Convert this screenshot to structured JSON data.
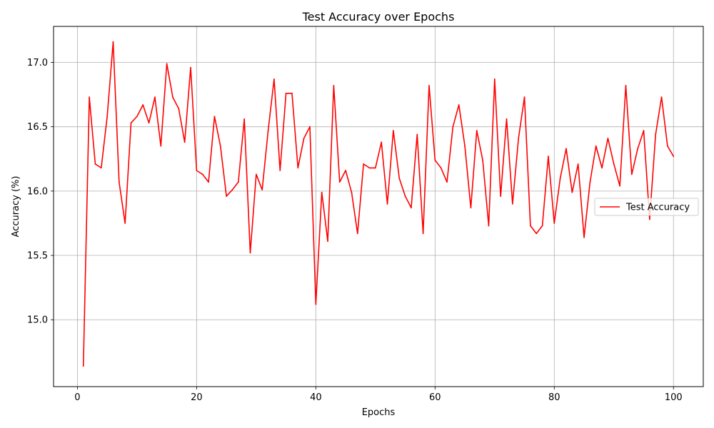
{
  "chart_data": {
    "type": "line",
    "title": "Test Accuracy over Epochs",
    "xlabel": "Epochs",
    "ylabel": "Accuracy (%)",
    "xlim": [
      -4,
      105
    ],
    "ylim": [
      14.48,
      17.28
    ],
    "x_ticks": [
      0,
      20,
      40,
      60,
      80,
      100
    ],
    "y_ticks": [
      15.0,
      15.5,
      16.0,
      16.5,
      17.0
    ],
    "x_tick_labels": [
      "0",
      "20",
      "40",
      "60",
      "80",
      "100"
    ],
    "y_tick_labels": [
      "15.0",
      "15.5",
      "16.0",
      "16.5",
      "17.0"
    ],
    "grid": true,
    "legend_position": "center-right",
    "series": [
      {
        "name": "Test Accuracy",
        "color": "#ff0000",
        "x": [
          1,
          2,
          3,
          4,
          5,
          6,
          7,
          8,
          9,
          10,
          11,
          12,
          13,
          14,
          15,
          16,
          17,
          18,
          19,
          20,
          21,
          22,
          23,
          24,
          25,
          26,
          27,
          28,
          29,
          30,
          31,
          32,
          33,
          34,
          35,
          36,
          37,
          38,
          39,
          40,
          41,
          42,
          43,
          44,
          45,
          46,
          47,
          48,
          49,
          50,
          51,
          52,
          53,
          54,
          55,
          56,
          57,
          58,
          59,
          60,
          61,
          62,
          63,
          64,
          65,
          66,
          67,
          68,
          69,
          70,
          71,
          72,
          73,
          74,
          75,
          76,
          77,
          78,
          79,
          80,
          81,
          82,
          83,
          84,
          85,
          86,
          87,
          88,
          89,
          90,
          91,
          92,
          93,
          94,
          95,
          96,
          97,
          98,
          99,
          100
        ],
        "values": [
          14.64,
          16.73,
          16.21,
          16.18,
          16.58,
          17.16,
          16.07,
          15.75,
          16.53,
          16.58,
          16.67,
          16.53,
          16.73,
          16.35,
          16.99,
          16.73,
          16.64,
          16.38,
          16.96,
          16.16,
          16.13,
          16.07,
          16.58,
          16.35,
          15.96,
          16.01,
          16.07,
          16.56,
          15.52,
          16.13,
          16.01,
          16.47,
          16.87,
          16.16,
          16.76,
          16.76,
          16.18,
          16.41,
          16.5,
          15.12,
          15.99,
          15.61,
          16.82,
          16.07,
          16.16,
          15.99,
          15.67,
          16.21,
          16.18,
          16.18,
          16.38,
          15.9,
          16.47,
          16.1,
          15.96,
          15.87,
          16.44,
          15.67,
          16.82,
          16.24,
          16.18,
          16.07,
          16.5,
          16.67,
          16.35,
          15.87,
          16.47,
          16.24,
          15.73,
          16.87,
          15.96,
          16.56,
          15.9,
          16.41,
          16.73,
          15.73,
          15.67,
          15.73,
          16.27,
          15.75,
          16.1,
          16.33,
          15.99,
          16.21,
          15.64,
          16.07,
          16.35,
          16.18,
          16.41,
          16.21,
          16.04,
          16.82,
          16.13,
          16.33,
          16.47,
          15.78,
          16.44,
          16.73,
          16.35,
          16.27
        ]
      }
    ]
  }
}
